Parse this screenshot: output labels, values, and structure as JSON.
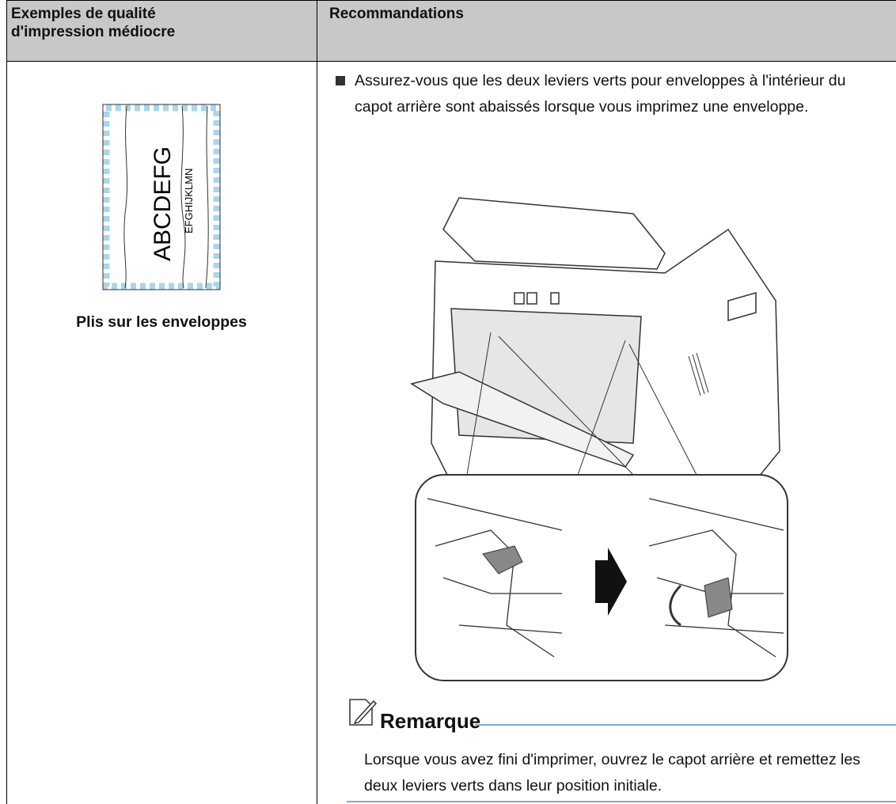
{
  "table": {
    "headers": [
      {
        "lines": [
          "Exemples de qualité",
          "d'impression médiocre"
        ]
      },
      {
        "lines": [
          "Recommandations"
        ]
      }
    ],
    "rows": [
      {
        "example": {
          "sample_texts": [
            "ABCDEFG",
            "EFGHIJKLMN"
          ],
          "caption": "Plis sur les enveloppes"
        },
        "recommendation": {
          "bullets": [
            "Assurez-vous que les deux leviers verts pour enveloppes à l'intérieur du capot arrière sont abaissés lorsque vous imprimez une enveloppe."
          ],
          "note": {
            "title": "Remarque",
            "text": "Lorsque vous avez fini d'imprimer, ouvrez le capot arrière et remettez les deux leviers verts dans leur position initiale."
          }
        }
      }
    ]
  }
}
